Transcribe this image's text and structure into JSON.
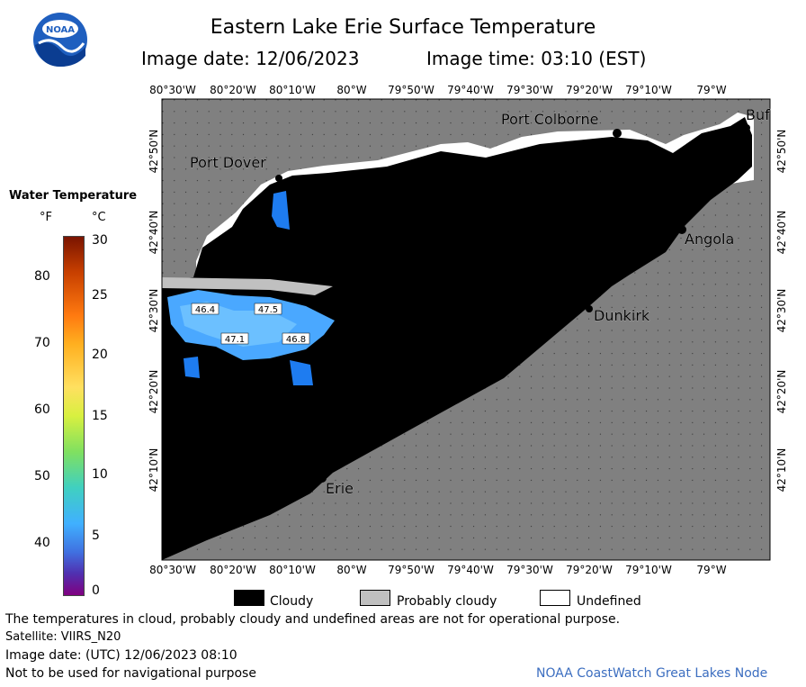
{
  "header": {
    "title": "Eastern Lake Erie Surface Temperature",
    "image_date": "Image date: 12/06/2023",
    "image_time": "Image time: 03:10 (EST)",
    "logo_text": "NOAA"
  },
  "map": {
    "longitude_labels": [
      "80°30'W",
      "80°20'W",
      "80°10'W",
      "80°W",
      "79°50'W",
      "79°40'W",
      "79°30'W",
      "79°20'W",
      "79°10'W",
      "79°W"
    ],
    "latitude_labels": [
      "42°50'N",
      "42°40'N",
      "42°30'N",
      "42°20'N",
      "42°10'N"
    ],
    "places": [
      "Port Colborne",
      "Port Dover",
      "Buf",
      "Angola",
      "Dunkirk",
      "Erie"
    ],
    "temperature_labels": [
      "46.4",
      "47.5",
      "47.1",
      "46.8"
    ],
    "colors": {
      "land": "#808080",
      "cloud": "#000000",
      "probably_cloudy": "#c0c0c0",
      "undefined": "#ffffff",
      "water_warm": "#4aa8ff",
      "water_mid": "#1e7cf0"
    }
  },
  "colorbar": {
    "title": "Water Temperature",
    "unit_f": "°F",
    "unit_c": "°C",
    "f_ticks": [
      "80",
      "70",
      "60",
      "50",
      "40"
    ],
    "c_ticks": [
      "30",
      "25",
      "20",
      "15",
      "10",
      "5",
      "0"
    ]
  },
  "legend": {
    "cloudy": "Cloudy",
    "probably_cloudy": "Probably cloudy",
    "undefined": "Undefined"
  },
  "footer": {
    "note": "The temperatures in cloud, probably cloudy and undefined areas are not for operational purpose.",
    "satellite": "Satellite: VIIRS_N20",
    "utc_date": "Image date: (UTC) 12/06/2023  08:10",
    "nav_warning": "Not to be used for navigational purpose",
    "credit": "NOAA CoastWatch Great Lakes Node"
  }
}
